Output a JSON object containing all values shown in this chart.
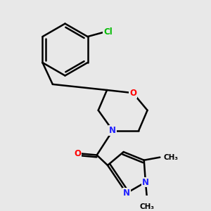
{
  "bg_color": "#e8e8e8",
  "bond_color": "#000000",
  "bond_width": 1.8,
  "atom_colors": {
    "O": "#ff0000",
    "N": "#2222ff",
    "Cl": "#00bb00",
    "C": "#000000"
  },
  "font_size": 8.5
}
